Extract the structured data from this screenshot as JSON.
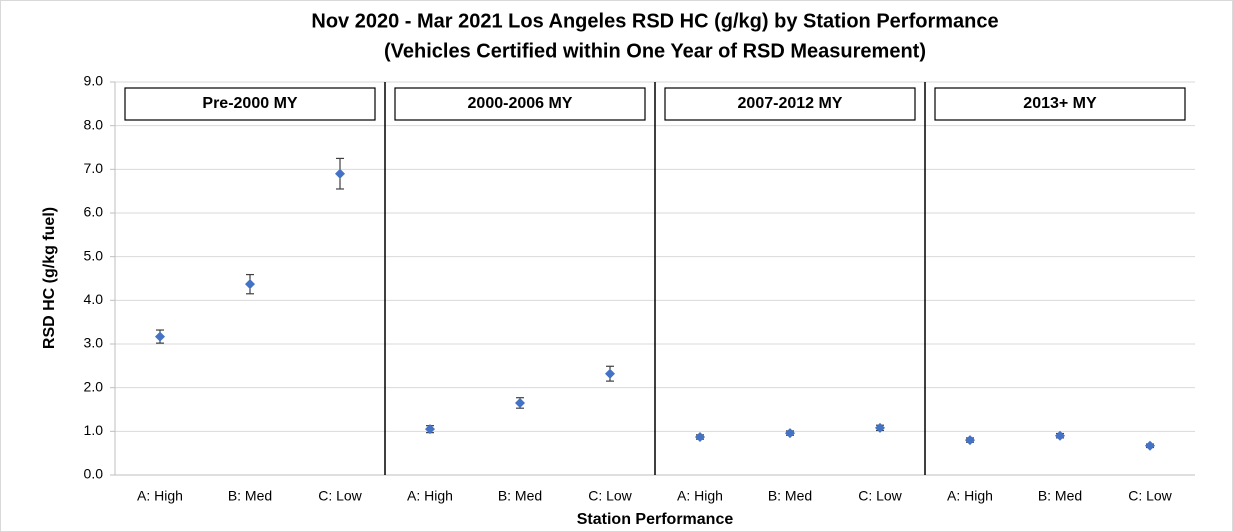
{
  "chart_data": {
    "type": "scatter",
    "title": [
      "Nov 2020 - Mar 2021 Los Angeles RSD HC (g/kg) by Station Performance",
      "(Vehicles Certified within One Year of RSD Measurement)"
    ],
    "x_label": "Station Performance",
    "y_label": "RSD HC (g/kg fuel)",
    "color": "#4472c4",
    "grid": true,
    "ylim": [
      0,
      9
    ],
    "yticks": [
      {
        "value": 0,
        "label": "0.0"
      },
      {
        "value": 1,
        "label": "1.0"
      },
      {
        "value": 2,
        "label": "2.0"
      },
      {
        "value": 3,
        "label": "3.0"
      },
      {
        "value": 4,
        "label": "4.0"
      },
      {
        "value": 5,
        "label": "5.0"
      },
      {
        "value": 6,
        "label": "6.0"
      },
      {
        "value": 7,
        "label": "7.0"
      },
      {
        "value": 8,
        "label": "8.0"
      },
      {
        "value": 9,
        "label": "9.0"
      }
    ],
    "panels": [
      {
        "name": "Pre-2000 MY",
        "categories": [
          "A: High",
          "B: Med",
          "C: Low"
        ],
        "values": [
          3.17,
          4.37,
          6.9
        ],
        "errors": [
          0.15,
          0.22,
          0.35
        ]
      },
      {
        "name": "2000-2006 MY",
        "categories": [
          "A: High",
          "B: Med",
          "C: Low"
        ],
        "values": [
          1.05,
          1.65,
          2.32
        ],
        "errors": [
          0.08,
          0.12,
          0.17
        ]
      },
      {
        "name": "2007-2012 MY",
        "categories": [
          "A: High",
          "B: Med",
          "C: Low"
        ],
        "values": [
          0.87,
          0.96,
          1.08
        ],
        "errors": [
          0.05,
          0.05,
          0.06
        ]
      },
      {
        "name": "2013+ MY",
        "categories": [
          "A: High",
          "B: Med",
          "C: Low"
        ],
        "values": [
          0.8,
          0.9,
          0.67
        ],
        "errors": [
          0.05,
          0.05,
          0.04
        ]
      }
    ]
  }
}
